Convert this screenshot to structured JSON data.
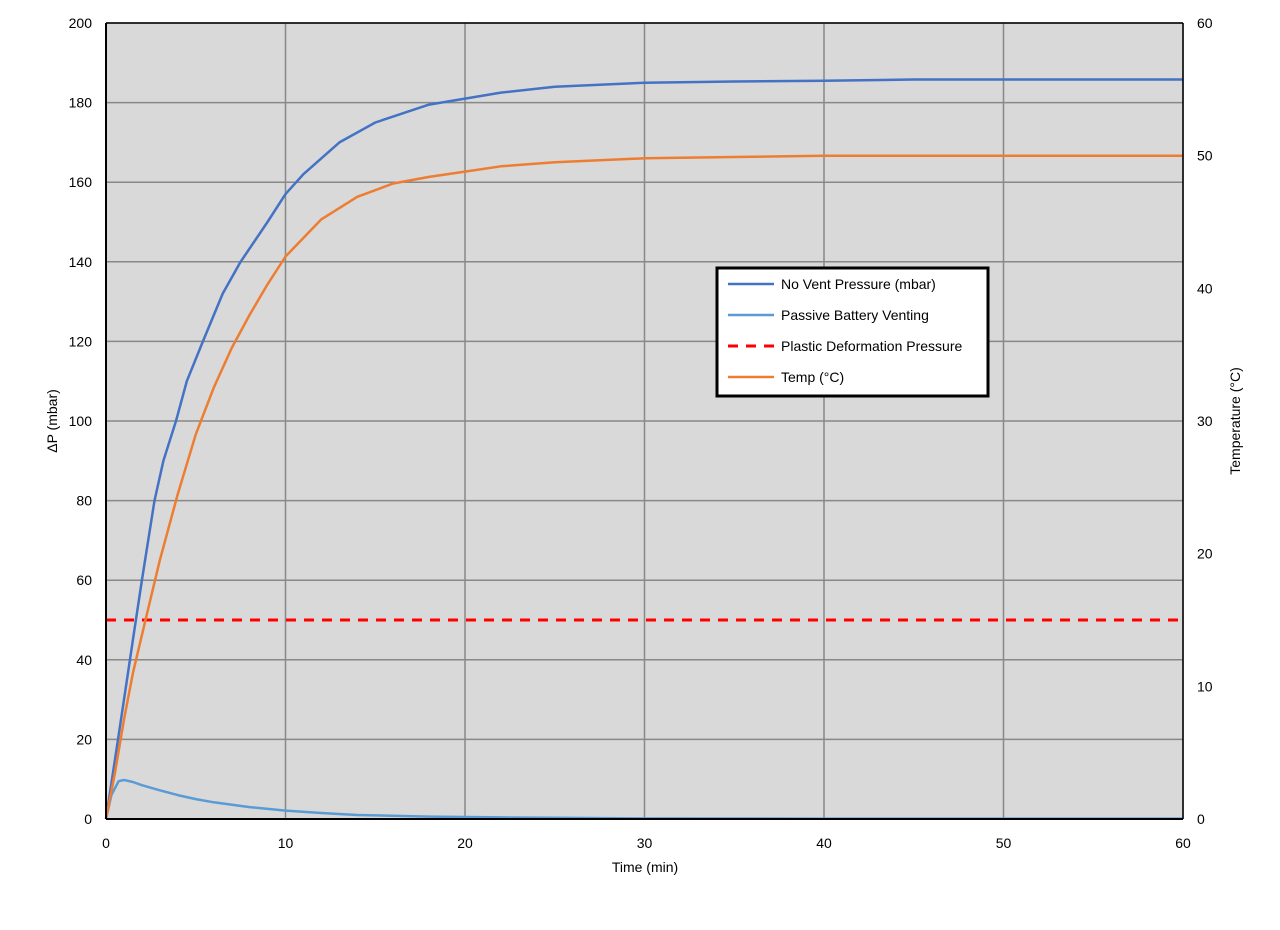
{
  "chart_data": {
    "type": "line",
    "title": "",
    "xlabel": "Time (min)",
    "ylabel": "ΔP (mbar)",
    "y2label": "Temperature (°C)",
    "xlim": [
      0,
      60
    ],
    "ylim": [
      0,
      200
    ],
    "y2lim": [
      0,
      60
    ],
    "xticks": [
      0,
      10,
      20,
      30,
      40,
      50,
      60
    ],
    "yticks": [
      0,
      20,
      40,
      60,
      80,
      100,
      120,
      140,
      160,
      180,
      200
    ],
    "y2ticks": [
      0,
      10,
      20,
      30,
      40,
      50,
      60
    ],
    "grid": true,
    "background": "#d9d9d9",
    "legend_position": "center-right",
    "series": [
      {
        "name": "No Vent Pressure (mbar)",
        "axis": "left",
        "color": "#4472c4",
        "style": "solid",
        "x": [
          0,
          0.5,
          1,
          1.5,
          2,
          2.7,
          3.2,
          3.9,
          4.5,
          5.4,
          6.5,
          7.5,
          9,
          10,
          11,
          12,
          13,
          15,
          18,
          20,
          22,
          25,
          30,
          35,
          40,
          45,
          50,
          60
        ],
        "y": [
          0,
          15,
          30,
          45,
          60,
          80,
          90,
          100,
          110,
          120,
          132,
          140,
          150,
          157,
          162,
          166,
          170,
          175,
          179.5,
          181,
          182.5,
          184,
          185,
          185.3,
          185.5,
          185.8,
          185.8,
          185.8
        ]
      },
      {
        "name": "Passive Battery Venting",
        "axis": "left",
        "color": "#5b9bd5",
        "style": "solid",
        "x": [
          0,
          0.3,
          0.7,
          1,
          1.5,
          2,
          3,
          4,
          5,
          6,
          8,
          10,
          12,
          14,
          18,
          22,
          25,
          30,
          40,
          60
        ],
        "y": [
          0,
          6,
          9.5,
          9.8,
          9.3,
          8.5,
          7.2,
          6,
          5,
          4.2,
          3,
          2.1,
          1.5,
          1,
          0.6,
          0.4,
          0.3,
          0.15,
          0.1,
          0.1
        ]
      },
      {
        "name": "Plastic Deformation Pressure",
        "axis": "left",
        "color": "#ff0000",
        "style": "dashed",
        "x": [
          0,
          60
        ],
        "y": [
          50,
          50
        ]
      },
      {
        "name": "Temp (°C)",
        "axis": "right",
        "color": "#ed7d31",
        "style": "solid",
        "x": [
          0,
          0.5,
          1,
          1.5,
          2.2,
          3,
          4,
          5,
          6,
          7,
          8,
          9,
          10,
          12,
          14,
          16,
          18,
          20,
          22,
          25,
          30,
          35,
          40,
          50,
          60
        ],
        "y": [
          0,
          3.5,
          7.5,
          11,
          15,
          19.5,
          24.5,
          29,
          32.5,
          35.5,
          38,
          40.3,
          42.4,
          45.2,
          46.9,
          47.9,
          48.4,
          48.8,
          49.2,
          49.5,
          49.8,
          49.9,
          50,
          50,
          50
        ]
      }
    ]
  }
}
